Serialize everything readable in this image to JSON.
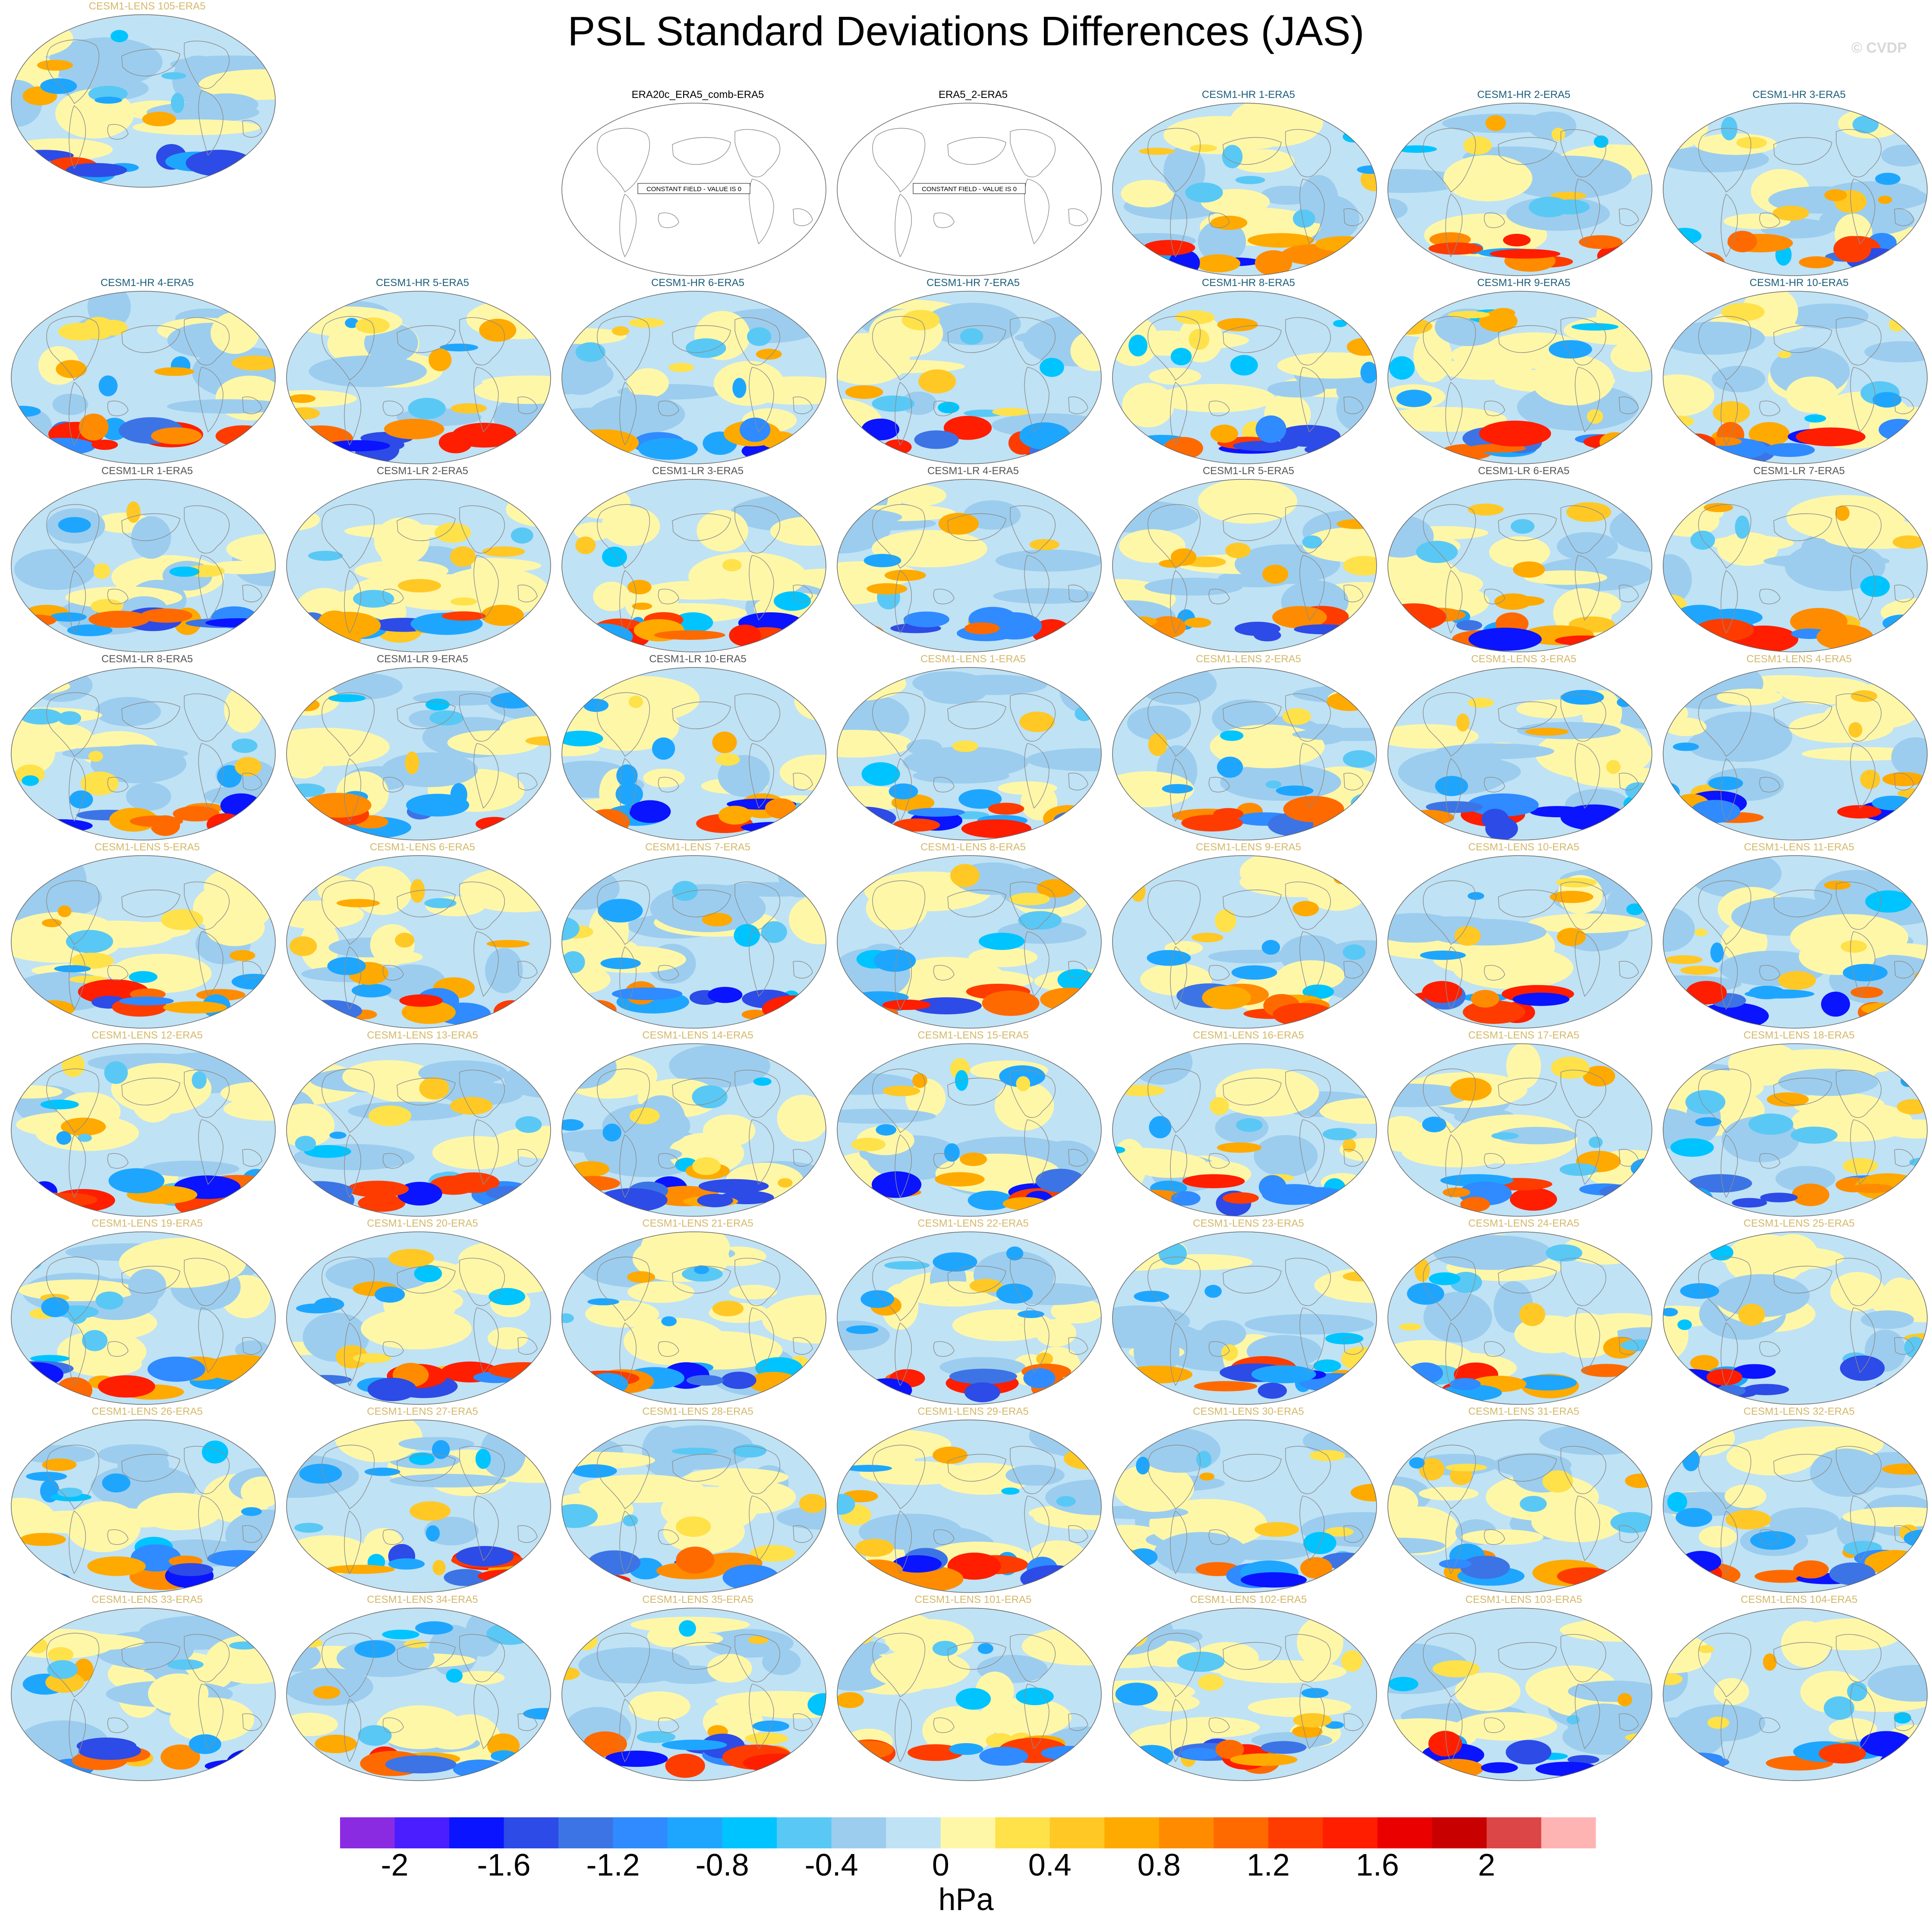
{
  "title": "PSL Standard Deviations Differences (JAS)",
  "watermark": "© CVDP",
  "colors": {
    "hr_title": "#1b5e7a",
    "lr_title": "#555555",
    "lens_title": "#d4b86a",
    "obs_title": "#000000",
    "coast": "#8c8c8c"
  },
  "panels": [
    {
      "label": "ERA20c_ERA5_comb-ERA5",
      "group": "obs",
      "constant": true
    },
    {
      "label": "ERA5_2-ERA5",
      "group": "obs",
      "constant": true
    },
    {
      "label": "CESM1-HR 1-ERA5",
      "group": "hr"
    },
    {
      "label": "CESM1-HR 2-ERA5",
      "group": "hr"
    },
    {
      "label": "CESM1-HR 3-ERA5",
      "group": "hr"
    },
    {
      "label": "CESM1-HR 4-ERA5",
      "group": "hr"
    },
    {
      "label": "CESM1-HR 5-ERA5",
      "group": "hr"
    },
    {
      "label": "CESM1-HR 6-ERA5",
      "group": "hr"
    },
    {
      "label": "CESM1-HR 7-ERA5",
      "group": "hr"
    },
    {
      "label": "CESM1-HR 8-ERA5",
      "group": "hr"
    },
    {
      "label": "CESM1-HR 9-ERA5",
      "group": "hr"
    },
    {
      "label": "CESM1-HR 10-ERA5",
      "group": "hr"
    },
    {
      "label": "CESM1-LR 1-ERA5",
      "group": "lr"
    },
    {
      "label": "CESM1-LR 2-ERA5",
      "group": "lr"
    },
    {
      "label": "CESM1-LR 3-ERA5",
      "group": "lr"
    },
    {
      "label": "CESM1-LR 4-ERA5",
      "group": "lr"
    },
    {
      "label": "CESM1-LR 5-ERA5",
      "group": "lr"
    },
    {
      "label": "CESM1-LR 6-ERA5",
      "group": "lr"
    },
    {
      "label": "CESM1-LR 7-ERA5",
      "group": "lr"
    },
    {
      "label": "CESM1-LR 8-ERA5",
      "group": "lr"
    },
    {
      "label": "CESM1-LR 9-ERA5",
      "group": "lr"
    },
    {
      "label": "CESM1-LR 10-ERA5",
      "group": "lr"
    },
    {
      "label": "CESM1-LENS 1-ERA5",
      "group": "lens"
    },
    {
      "label": "CESM1-LENS 2-ERA5",
      "group": "lens"
    },
    {
      "label": "CESM1-LENS 3-ERA5",
      "group": "lens"
    },
    {
      "label": "CESM1-LENS 4-ERA5",
      "group": "lens"
    },
    {
      "label": "CESM1-LENS 5-ERA5",
      "group": "lens"
    },
    {
      "label": "CESM1-LENS 6-ERA5",
      "group": "lens"
    },
    {
      "label": "CESM1-LENS 7-ERA5",
      "group": "lens"
    },
    {
      "label": "CESM1-LENS 8-ERA5",
      "group": "lens"
    },
    {
      "label": "CESM1-LENS 9-ERA5",
      "group": "lens"
    },
    {
      "label": "CESM1-LENS 10-ERA5",
      "group": "lens"
    },
    {
      "label": "CESM1-LENS 11-ERA5",
      "group": "lens"
    },
    {
      "label": "CESM1-LENS 12-ERA5",
      "group": "lens"
    },
    {
      "label": "CESM1-LENS 13-ERA5",
      "group": "lens"
    },
    {
      "label": "CESM1-LENS 14-ERA5",
      "group": "lens"
    },
    {
      "label": "CESM1-LENS 15-ERA5",
      "group": "lens"
    },
    {
      "label": "CESM1-LENS 16-ERA5",
      "group": "lens"
    },
    {
      "label": "CESM1-LENS 17-ERA5",
      "group": "lens"
    },
    {
      "label": "CESM1-LENS 18-ERA5",
      "group": "lens"
    },
    {
      "label": "CESM1-LENS 19-ERA5",
      "group": "lens"
    },
    {
      "label": "CESM1-LENS 20-ERA5",
      "group": "lens"
    },
    {
      "label": "CESM1-LENS 21-ERA5",
      "group": "lens"
    },
    {
      "label": "CESM1-LENS 22-ERA5",
      "group": "lens"
    },
    {
      "label": "CESM1-LENS 23-ERA5",
      "group": "lens"
    },
    {
      "label": "CESM1-LENS 24-ERA5",
      "group": "lens"
    },
    {
      "label": "CESM1-LENS 25-ERA5",
      "group": "lens"
    },
    {
      "label": "CESM1-LENS 26-ERA5",
      "group": "lens"
    },
    {
      "label": "CESM1-LENS 27-ERA5",
      "group": "lens"
    },
    {
      "label": "CESM1-LENS 28-ERA5",
      "group": "lens"
    },
    {
      "label": "CESM1-LENS 29-ERA5",
      "group": "lens"
    },
    {
      "label": "CESM1-LENS 30-ERA5",
      "group": "lens"
    },
    {
      "label": "CESM1-LENS 31-ERA5",
      "group": "lens"
    },
    {
      "label": "CESM1-LENS 32-ERA5",
      "group": "lens"
    },
    {
      "label": "CESM1-LENS 33-ERA5",
      "group": "lens"
    },
    {
      "label": "CESM1-LENS 34-ERA5",
      "group": "lens"
    },
    {
      "label": "CESM1-LENS 35-ERA5",
      "group": "lens"
    },
    {
      "label": "CESM1-LENS 101-ERA5",
      "group": "lens"
    },
    {
      "label": "CESM1-LENS 102-ERA5",
      "group": "lens"
    },
    {
      "label": "CESM1-LENS 103-ERA5",
      "group": "lens"
    },
    {
      "label": "CESM1-LENS 104-ERA5",
      "group": "lens"
    },
    {
      "label": "CESM1-LENS 105-ERA5",
      "group": "lens"
    }
  ],
  "constant_field_text": "CONSTANT FIELD - VALUE IS 0",
  "colorbar": {
    "units": "hPa",
    "colors": [
      "#8a2be2",
      "#4b1eff",
      "#0a14ff",
      "#2d4be6",
      "#3c74e6",
      "#2f8bff",
      "#1ea6ff",
      "#00c4ff",
      "#5ac8f5",
      "#9ccdee",
      "#bfe2f5",
      "#fff7a8",
      "#ffe14a",
      "#ffc825",
      "#ffaa00",
      "#ff8c00",
      "#ff6a00",
      "#ff3c00",
      "#ff1e00",
      "#eb0000",
      "#c80000",
      "#dc4646",
      "#ffb4b4"
    ],
    "tick_labels": [
      "-2",
      "-1.6",
      "-1.2",
      "-0.8",
      "-0.4",
      "0",
      "0.4",
      "0.8",
      "1.2",
      "1.6",
      "2"
    ]
  }
}
